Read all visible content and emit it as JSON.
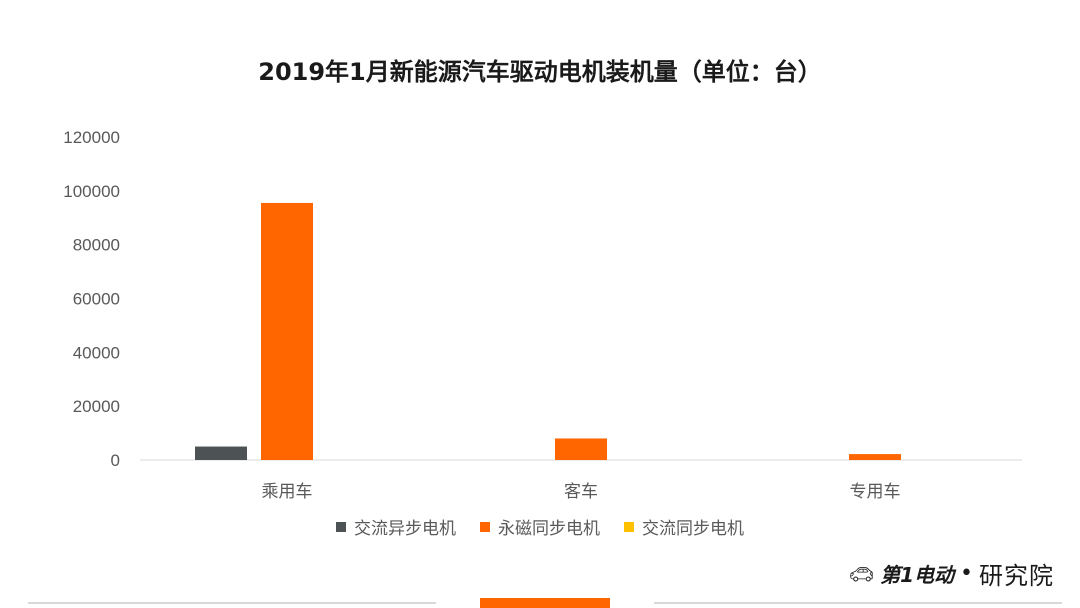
{
  "chart_data": {
    "type": "bar",
    "title": "2019年1月新能源汽车驱动电机装机量（单位：台）",
    "categories": [
      "乘用车",
      "客车",
      "专用车"
    ],
    "series": [
      {
        "name": "交流异步电机",
        "color": "#4d5354",
        "values": [
          5000,
          0,
          0
        ]
      },
      {
        "name": "永磁同步电机",
        "color": "#ff6600",
        "values": [
          95500,
          8000,
          2200
        ]
      },
      {
        "name": "交流同步电机",
        "color": "#ffc000",
        "values": [
          0,
          0,
          0
        ]
      }
    ],
    "yticks": [
      0,
      20000,
      40000,
      60000,
      80000,
      100000,
      120000
    ],
    "ylim": [
      0,
      120000
    ],
    "grid": false,
    "legend_position": "bottom"
  },
  "logo": {
    "car_icon": "car-icon",
    "brand": "第1电动",
    "separator": "•",
    "institute": "研究院"
  },
  "colors": {
    "accent": "#ff6600",
    "axis": "#d9d9d9",
    "label": "#595959"
  }
}
